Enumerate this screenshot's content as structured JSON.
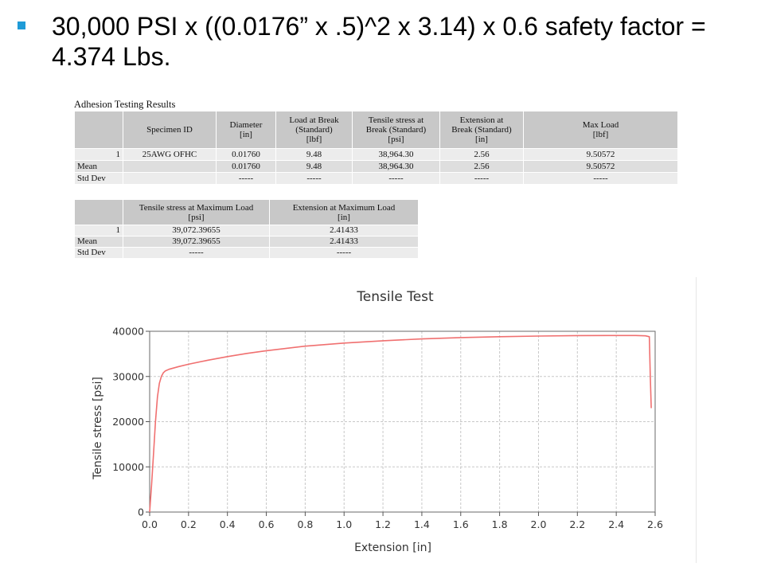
{
  "slide": {
    "bullet_text": "30,000 PSI  x ((0.0176” x .5)^2 x 3.14) x 0.6 safety factor = 4.374 Lbs."
  },
  "table1": {
    "caption": "Adhesion Testing Results",
    "headers": [
      "",
      "Specimen ID",
      "Diameter\n[in]",
      "Load at Break\n(Standard)\n[lbf]",
      "Tensile stress at\nBreak (Standard)\n[psi]",
      "Extension at\nBreak (Standard)\n[in]",
      "Max Load\n[lbf]"
    ],
    "rows": [
      [
        "1",
        "25AWG OFHC",
        "0.01760",
        "9.48",
        "38,964.30",
        "2.56",
        "9.50572"
      ],
      [
        "Mean",
        "",
        "0.01760",
        "9.48",
        "38,964.30",
        "2.56",
        "9.50572"
      ],
      [
        "Std Dev",
        "",
        "-----",
        "-----",
        "-----",
        "-----",
        "-----"
      ]
    ]
  },
  "table2": {
    "headers": [
      "",
      "Tensile stress at Maximum Load\n[psi]",
      "Extension at Maximum Load\n[in]"
    ],
    "rows": [
      [
        "1",
        "39,072.39655",
        "2.41433"
      ],
      [
        "Mean",
        "39,072.39655",
        "2.41433"
      ],
      [
        "Std Dev",
        "-----",
        "-----"
      ]
    ]
  },
  "chart_data": {
    "type": "line",
    "title": "Tensile Test",
    "xlabel": "Extension [in]",
    "ylabel": "Tensile stress [psi]",
    "xlim": [
      0,
      2.6
    ],
    "ylim": [
      0,
      40000
    ],
    "xticks": [
      "0.0",
      "0.2",
      "0.4",
      "0.6",
      "0.8",
      "1.0",
      "1.2",
      "1.4",
      "1.6",
      "1.8",
      "2.0",
      "2.2",
      "2.4",
      "2.6"
    ],
    "yticks": [
      "0",
      "10000",
      "20000",
      "30000",
      "40000"
    ],
    "grid": true,
    "line_color": "#f07070",
    "series": [
      {
        "x": [
          0.0,
          0.01,
          0.02,
          0.03,
          0.04,
          0.05,
          0.06,
          0.07,
          0.08,
          0.1,
          0.15,
          0.2,
          0.3,
          0.4,
          0.5,
          0.6,
          0.8,
          1.0,
          1.2,
          1.4,
          1.6,
          1.8,
          2.0,
          2.2,
          2.4,
          2.5,
          2.55,
          2.57,
          2.575,
          2.58
        ],
        "y": [
          0,
          6000,
          13000,
          20000,
          25500,
          28500,
          30000,
          30800,
          31200,
          31600,
          32200,
          32700,
          33600,
          34400,
          35100,
          35700,
          36700,
          37400,
          37900,
          38300,
          38600,
          38800,
          38950,
          39050,
          39070,
          39070,
          39000,
          38800,
          30000,
          23000
        ]
      }
    ]
  }
}
